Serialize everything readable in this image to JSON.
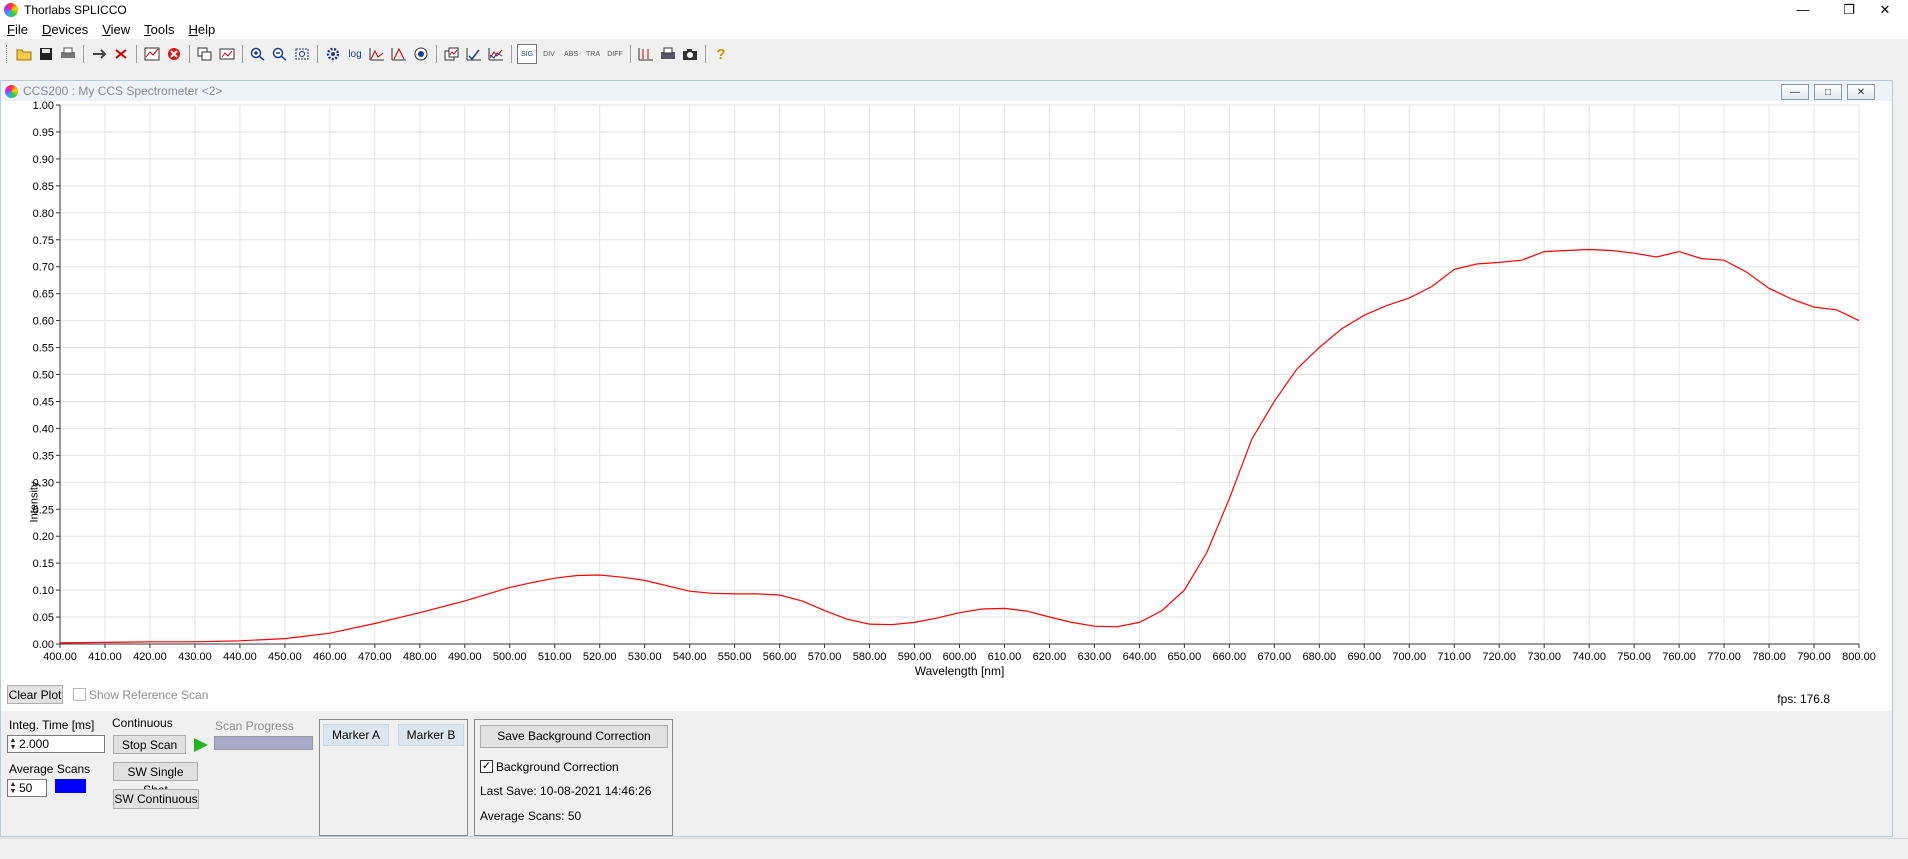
{
  "app": {
    "title": "Thorlabs SPLICCO"
  },
  "window_controls": {
    "minimize": "—",
    "restore": "❐",
    "close": "✕"
  },
  "menu": [
    {
      "accel": "F",
      "rest": "ile"
    },
    {
      "accel": "D",
      "rest": "evices"
    },
    {
      "accel": "V",
      "rest": "iew"
    },
    {
      "accel": "T",
      "rest": "ools"
    },
    {
      "accel": "H",
      "rest": "elp"
    }
  ],
  "toolbar": {
    "icons": [
      "open-folder-icon",
      "save-icon",
      "print-icon",
      "connect-icon",
      "disconnect-icon",
      "spectrum-icon",
      "stop-red-icon",
      "copy-icon",
      "export-icon",
      "zoom-in-icon",
      "zoom-out-icon",
      "zoom-fit-icon",
      "settings-gear-icon",
      "log-icon",
      "peak-icon",
      "triangle-icon",
      "color-wheel-icon",
      "overlay-icon",
      "graph-check-icon",
      "graph-compare-icon",
      "sig-icon",
      "div-icon",
      "abs-icon",
      "tra-icon",
      "diff-icon",
      "marker-icon",
      "print-chart-icon",
      "camera-icon",
      "help-icon"
    ],
    "text_icons": {
      "log": "log",
      "sig": "SIG",
      "div": "DIV",
      "abs": "ABS",
      "tra": "TRA",
      "diff": "DIFF"
    }
  },
  "child_window": {
    "title": "CCS200 : My CCS Spectrometer <2>",
    "controls": {
      "minimize": "—",
      "restore": "□",
      "close": "✕"
    }
  },
  "chart_data": {
    "type": "line",
    "xlabel": "Wavelength [nm]",
    "ylabel": "Intensity",
    "xlim": [
      400,
      800
    ],
    "ylim": [
      0,
      1
    ],
    "x_ticks": [
      "400.00",
      "410.00",
      "420.00",
      "430.00",
      "440.00",
      "450.00",
      "460.00",
      "470.00",
      "480.00",
      "490.00",
      "500.00",
      "510.00",
      "520.00",
      "530.00",
      "540.00",
      "550.00",
      "560.00",
      "570.00",
      "580.00",
      "590.00",
      "600.00",
      "610.00",
      "620.00",
      "630.00",
      "640.00",
      "650.00",
      "660.00",
      "670.00",
      "680.00",
      "690.00",
      "700.00",
      "710.00",
      "720.00",
      "730.00",
      "740.00",
      "750.00",
      "760.00",
      "770.00",
      "780.00",
      "790.00",
      "800.00"
    ],
    "y_ticks": [
      "0.00",
      "0.05",
      "0.10",
      "0.15",
      "0.20",
      "0.25",
      "0.30",
      "0.35",
      "0.40",
      "0.45",
      "0.50",
      "0.55",
      "0.60",
      "0.65",
      "0.70",
      "0.75",
      "0.80",
      "0.85",
      "0.90",
      "0.95",
      "1.00"
    ],
    "grid": true,
    "series": [
      {
        "color": "#ff0000",
        "x": [
          400,
          410,
          420,
          430,
          440,
          450,
          460,
          470,
          480,
          490,
          500,
          505,
          510,
          515,
          520,
          525,
          530,
          535,
          540,
          545,
          550,
          555,
          560,
          565,
          570,
          575,
          580,
          585,
          590,
          595,
          600,
          605,
          610,
          615,
          620,
          625,
          630,
          635,
          640,
          645,
          650,
          655,
          660,
          665,
          670,
          675,
          680,
          685,
          690,
          695,
          700,
          705,
          710,
          715,
          720,
          725,
          730,
          735,
          740,
          745,
          750,
          755,
          760,
          765,
          770,
          775,
          780,
          785,
          790,
          795,
          800
        ],
        "y": [
          0.002,
          0.003,
          0.004,
          0.004,
          0.006,
          0.01,
          0.02,
          0.038,
          0.058,
          0.08,
          0.105,
          0.114,
          0.122,
          0.127,
          0.128,
          0.124,
          0.118,
          0.108,
          0.098,
          0.094,
          0.093,
          0.093,
          0.091,
          0.08,
          0.062,
          0.046,
          0.037,
          0.036,
          0.04,
          0.048,
          0.058,
          0.065,
          0.066,
          0.061,
          0.05,
          0.04,
          0.033,
          0.032,
          0.04,
          0.062,
          0.1,
          0.17,
          0.27,
          0.38,
          0.45,
          0.51,
          0.55,
          0.585,
          0.61,
          0.628,
          0.642,
          0.663,
          0.695,
          0.705,
          0.708,
          0.712,
          0.728,
          0.73,
          0.732,
          0.73,
          0.725,
          0.718,
          0.728,
          0.715,
          0.712,
          0.69,
          0.66,
          0.64,
          0.625,
          0.62,
          0.6
        ]
      }
    ]
  },
  "fps_label": "fps: 176.8",
  "controls": {
    "clear_plot": "Clear Plot",
    "show_reference": "Show Reference Scan",
    "integ_time_label": "Integ. Time [ms]",
    "integ_time_value": "2.000",
    "average_scans_label": "Average Scans",
    "average_scans_value": "50",
    "average_color": "#0000ff",
    "mode_label": "Continuous",
    "stop_scan": "Stop Scan",
    "sw_single_shot": "SW Single Shot",
    "sw_continuous": "SW Continuous",
    "scan_progress_label": "Scan Progress",
    "marker_a": "Marker A",
    "marker_b": "Marker B",
    "save_background": "Save Background Correction",
    "background_correction": "Background Correction",
    "last_save": "Last Save: 10-08-2021 14:46:26",
    "bg_average_scans": "Average Scans: 50"
  }
}
